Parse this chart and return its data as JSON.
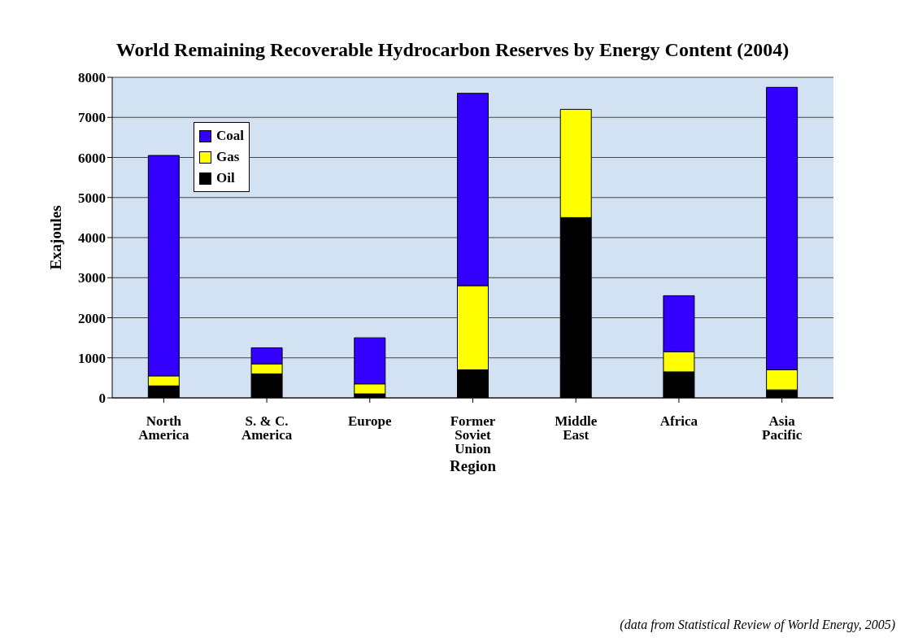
{
  "chart_data": {
    "type": "bar",
    "title": "World Remaining Recoverable Hydrocarbon Reserves by Energy Content (2004)",
    "xlabel": "Region",
    "ylabel": "Exajoules",
    "categories": [
      "North America",
      "S. & C. America",
      "Europe",
      "Former Soviet Union",
      "Middle East",
      "Africa",
      "Asia Pacific"
    ],
    "stacked": true,
    "series": [
      {
        "name": "Oil",
        "color": "#000000",
        "values": [
          300,
          600,
          100,
          700,
          4500,
          650,
          200
        ]
      },
      {
        "name": "Gas",
        "color": "#ffff00",
        "values": [
          250,
          250,
          250,
          2100,
          2700,
          500,
          500
        ]
      },
      {
        "name": "Coal",
        "color": "#3300ff",
        "values": [
          5500,
          400,
          1150,
          4800,
          0,
          1400,
          7050
        ]
      }
    ],
    "ylim": [
      0,
      8000
    ],
    "yticks": [
      0,
      1000,
      2000,
      3000,
      4000,
      5000,
      6000,
      7000,
      8000
    ],
    "grid": "y",
    "legend": "top left",
    "annotations": [
      "(data from Statistical Review of World Energy, 2005)"
    ]
  }
}
